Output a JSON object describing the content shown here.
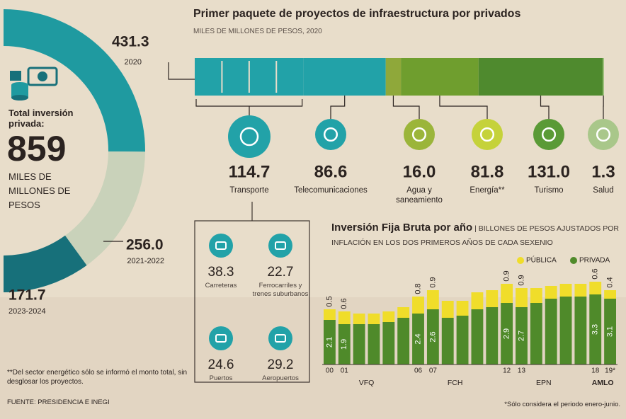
{
  "header": {
    "title": "Primer paquete de proyectos de infraestructura por privados",
    "subtitle": "MILES DE MILLONES DE PESOS, 2020"
  },
  "total": {
    "label": "Total inversión privada:",
    "value": 859,
    "unit": "MILES DE MILLONES DE PESOS"
  },
  "chart_data": [
    {
      "type": "donut",
      "categories": [
        "2020",
        "2021-2022",
        "2023-2024"
      ],
      "values": [
        431.3,
        256.0,
        171.7
      ],
      "value_labels": [
        "431.3",
        "256.0",
        "171.7"
      ],
      "colors": [
        "#1f9aa0",
        "#c9d2ba",
        "#17707a"
      ]
    },
    {
      "type": "stacked-bar-horizontal",
      "categories": [
        "Transporte",
        "Telecomunicaciones",
        "Agua y saneamiento",
        "Energía**",
        "Turismo",
        "Salud"
      ],
      "values": [
        114.7,
        86.6,
        16.0,
        81.8,
        131.0,
        1.3
      ],
      "value_labels": [
        "114.7",
        "86.6",
        "16.0",
        "81.8",
        "131.0",
        "1.3"
      ],
      "colors": [
        "#22a2a8",
        "#22a2a8",
        "#8fa83a",
        "#6f9e2e",
        "#4f8a2e",
        "#9cc07a"
      ],
      "icon_colors": [
        "#22a2a8",
        "#22a2a8",
        "#9bb53a",
        "#c5d23a",
        "#5a9a36",
        "#a9c78a"
      ]
    },
    {
      "type": "breakdown",
      "categories": [
        "Carreteras",
        "Ferrocarriles y trenes suburbanos",
        "Puertos",
        "Aeropuertos"
      ],
      "values": [
        38.3,
        22.7,
        24.6,
        29.2
      ]
    },
    {
      "type": "stacked-bar",
      "title": "Inversión Fija Bruta por año",
      "subtitle": "BILLONES DE PESOS AJUSTADOS POR INFLACIÓN EN LOS DOS PRIMEROS AÑOS DE CADA SEXENIO",
      "categories": [
        "00",
        "01",
        null,
        null,
        null,
        null,
        "06",
        "07",
        null,
        null,
        null,
        null,
        "12",
        "13",
        null,
        null,
        null,
        null,
        "18",
        "19*"
      ],
      "series": [
        {
          "name": "PÚBLICA",
          "color": "#f0dd2a",
          "values": [
            0.5,
            0.6,
            0.5,
            0.5,
            0.5,
            0.5,
            0.8,
            0.9,
            0.8,
            0.7,
            0.8,
            0.8,
            0.9,
            0.9,
            0.7,
            0.6,
            0.6,
            0.6,
            0.6,
            0.4
          ],
          "value_labels": [
            "0.5",
            "0.6",
            null,
            null,
            null,
            null,
            "0.8",
            "0.9",
            null,
            null,
            null,
            null,
            "0.9",
            "0.9",
            null,
            null,
            null,
            null,
            "0.6",
            "0.4"
          ]
        },
        {
          "name": "PRIVADA",
          "color": "#4f8a2a",
          "values": [
            2.1,
            1.9,
            1.9,
            1.9,
            2.0,
            2.2,
            2.4,
            2.6,
            2.2,
            2.3,
            2.6,
            2.7,
            2.9,
            2.7,
            2.9,
            3.1,
            3.2,
            3.2,
            3.3,
            3.1
          ],
          "value_labels": [
            "2.1",
            "1.9",
            null,
            null,
            null,
            null,
            "2.4",
            "2.6",
            null,
            null,
            null,
            null,
            "2.9",
            "2.7",
            null,
            null,
            null,
            null,
            "3.3",
            "3.1"
          ]
        }
      ],
      "ylim": [
        0,
        4
      ],
      "periods": [
        "VFQ",
        "FCH",
        "EPN",
        "AMLO"
      ]
    }
  ],
  "notes": {
    "energy": "**Del sector energético sólo se informó el monto total, sin desglosar los proyectos.",
    "source": "FUENTE: PRESIDENCIA E INEGI",
    "period": "*Sólo considera el periodo enero-junio."
  }
}
